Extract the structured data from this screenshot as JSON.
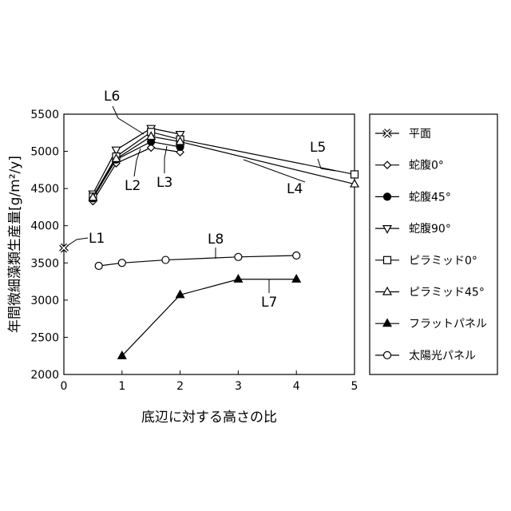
{
  "chart_data": {
    "type": "line",
    "title": "",
    "xlabel": "底辺に対する高さの比",
    "ylabel": "年間微細藻類生産量[g/m²/y]",
    "xlim": [
      0,
      5
    ],
    "ylim": [
      2000,
      5500
    ],
    "xticks": [
      "0",
      "1",
      "2",
      "3",
      "4",
      "5"
    ],
    "yticks": [
      "2000",
      "2500",
      "3000",
      "3500",
      "4000",
      "4500",
      "5000",
      "5500"
    ],
    "grid": false,
    "legend_position": "right",
    "series": [
      {
        "name": "平面",
        "marker": "x-cross",
        "fill": "open",
        "tag": "L1",
        "points": [
          [
            0,
            3700
          ]
        ]
      },
      {
        "name": "蛇腹0°",
        "marker": "diamond",
        "fill": "open",
        "tag": "L2",
        "points": [
          [
            0.5,
            4330
          ],
          [
            0.9,
            4840
          ],
          [
            1.5,
            5050
          ],
          [
            2.0,
            4990
          ]
        ]
      },
      {
        "name": "蛇腹45°",
        "marker": "circle",
        "fill": "filled",
        "tag": "L3",
        "points": [
          [
            0.5,
            4370
          ],
          [
            0.9,
            4890
          ],
          [
            1.5,
            5130
          ],
          [
            2.0,
            5060
          ]
        ]
      },
      {
        "name": "蛇腹90°",
        "marker": "triangle-down",
        "fill": "open",
        "tag": "L6",
        "points": [
          [
            0.5,
            4430
          ],
          [
            0.9,
            5020
          ],
          [
            1.5,
            5310
          ],
          [
            2.0,
            5230
          ]
        ]
      },
      {
        "name": "ピラミッド0°",
        "marker": "square",
        "fill": "open",
        "tag": "L5",
        "points": [
          [
            0.5,
            4390
          ],
          [
            0.9,
            4930
          ],
          [
            1.5,
            5260
          ],
          [
            2.0,
            5160
          ],
          [
            5.0,
            4690
          ]
        ]
      },
      {
        "name": "ピラミッド45°",
        "marker": "triangle-up",
        "fill": "open",
        "tag": "L4",
        "points": [
          [
            0.5,
            4380
          ],
          [
            0.9,
            4900
          ],
          [
            1.5,
            5200
          ],
          [
            2.0,
            5130
          ],
          [
            5.0,
            4560
          ]
        ]
      },
      {
        "name": "フラットパネル",
        "marker": "triangle-up",
        "fill": "filled",
        "tag": "L7",
        "points": [
          [
            1.0,
            2250
          ],
          [
            2.0,
            3070
          ],
          [
            3.0,
            3280
          ],
          [
            4.0,
            3280
          ]
        ]
      },
      {
        "name": "太陽光パネル",
        "marker": "circle",
        "fill": "open",
        "tag": "L8",
        "points": [
          [
            0.6,
            3460
          ],
          [
            1.0,
            3500
          ],
          [
            1.75,
            3540
          ],
          [
            3.0,
            3580
          ],
          [
            4.0,
            3600
          ]
        ]
      }
    ],
    "annotations": [
      "L1",
      "L2",
      "L3",
      "L4",
      "L5",
      "L6",
      "L7",
      "L8"
    ]
  }
}
